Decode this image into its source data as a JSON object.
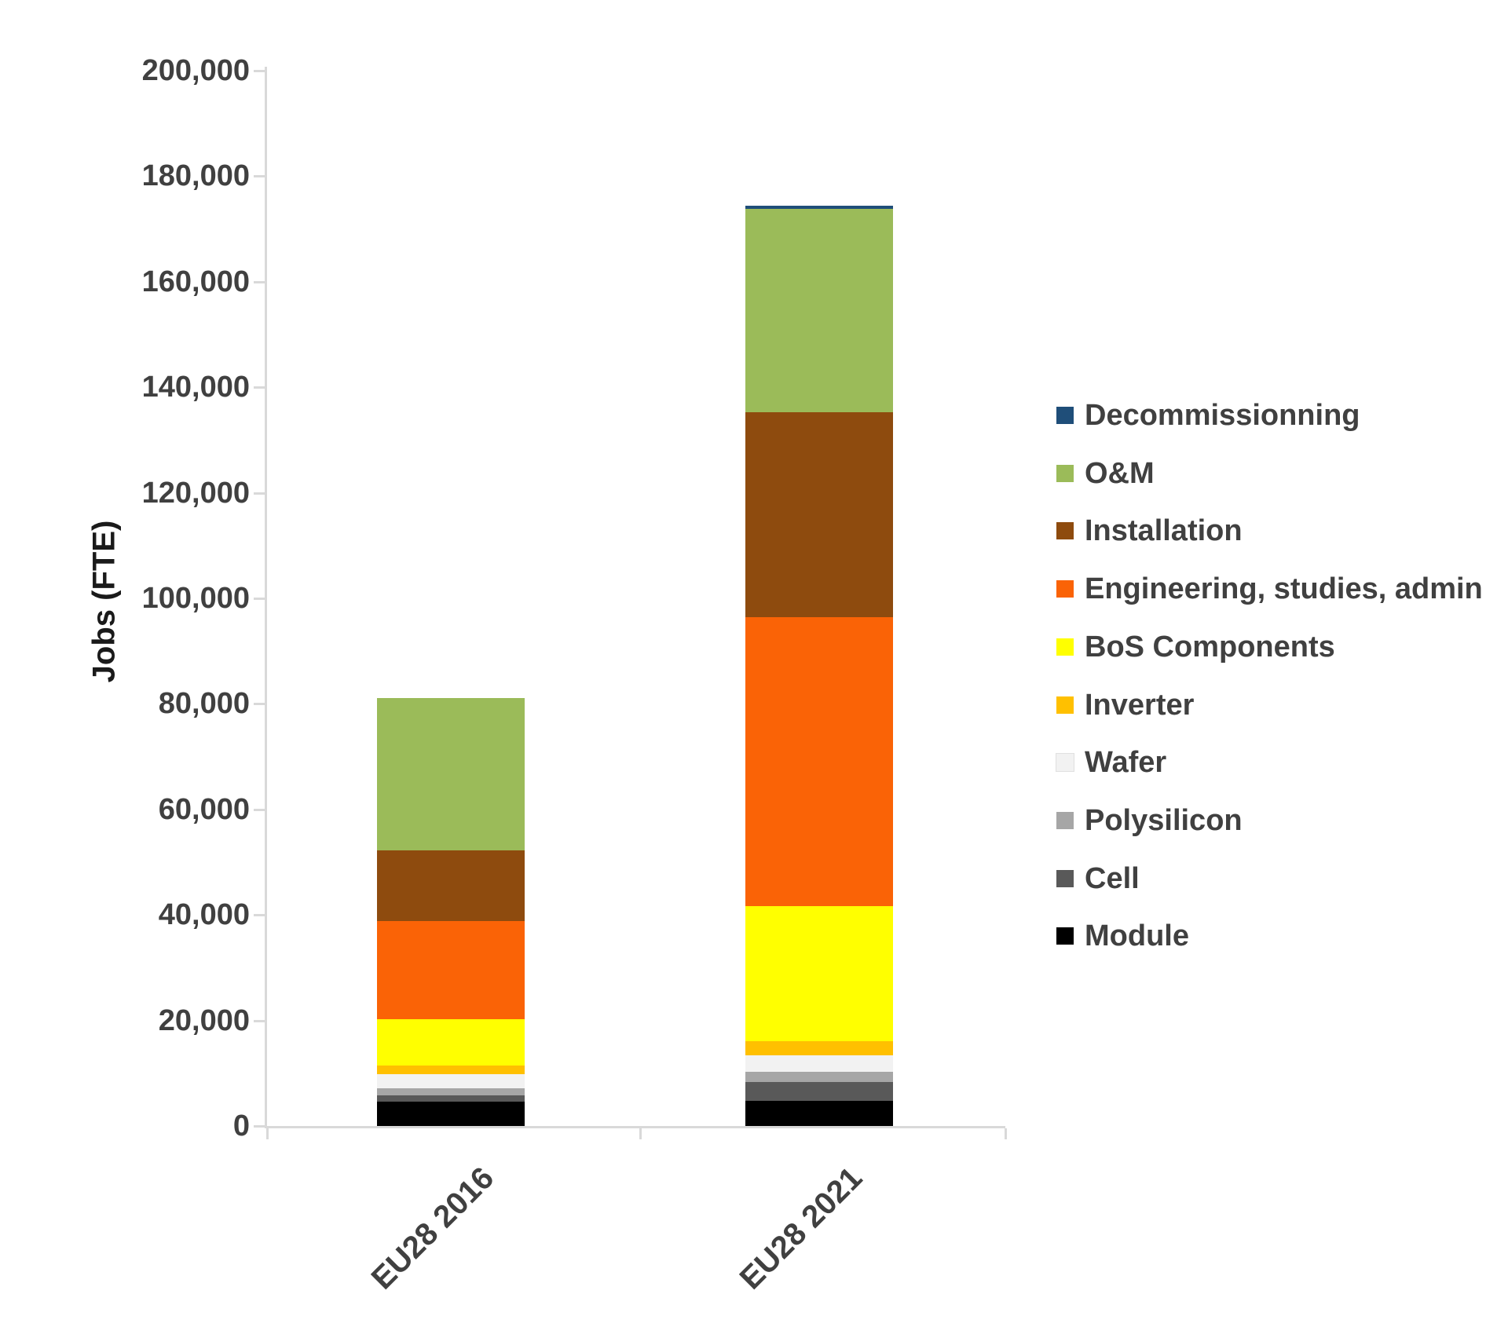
{
  "chart_data": {
    "type": "bar",
    "variant": "stacked-column",
    "title": "",
    "ylabel": "Jobs (FTE)",
    "xlabel": "",
    "categories": [
      "EU28 2016",
      "EU28 2021"
    ],
    "y_axis": {
      "min": 0,
      "max": 200000,
      "tick_interval": 20000,
      "tick_labels": [
        "0",
        "20,000",
        "40,000",
        "60,000",
        "80,000",
        "100,000",
        "120,000",
        "140,000",
        "160,000",
        "180,000",
        "200,000"
      ]
    },
    "legend_position": "right",
    "grid": false,
    "series": [
      {
        "name": "Decommissionning",
        "color": "#1f4e79",
        "values": [
          0,
          600
        ]
      },
      {
        "name": "O&M",
        "color": "#9bbb59",
        "values": [
          28800,
          38500
        ]
      },
      {
        "name": "Installation",
        "color": "#8e4b0e",
        "values": [
          13400,
          38900
        ]
      },
      {
        "name": "Engineering, studies, admin",
        "color": "#fa6306",
        "values": [
          18600,
          54700
        ]
      },
      {
        "name": "BoS Components",
        "color": "#ffff00",
        "values": [
          8800,
          25700
        ]
      },
      {
        "name": "Inverter",
        "color": "#ffc000",
        "values": [
          1700,
          2600
        ]
      },
      {
        "name": "Wafer",
        "color": "#f2f2f2",
        "values": [
          2700,
          3100
        ]
      },
      {
        "name": "Polysilicon",
        "color": "#a6a6a6",
        "values": [
          1300,
          1900
        ]
      },
      {
        "name": "Cell",
        "color": "#595959",
        "values": [
          1200,
          3600
        ]
      },
      {
        "name": "Module",
        "color": "#000000",
        "values": [
          4600,
          4800
        ]
      }
    ],
    "totals": [
      81100,
      174400
    ],
    "axis_color": "#d9d9d9",
    "text_color": "#404040"
  }
}
